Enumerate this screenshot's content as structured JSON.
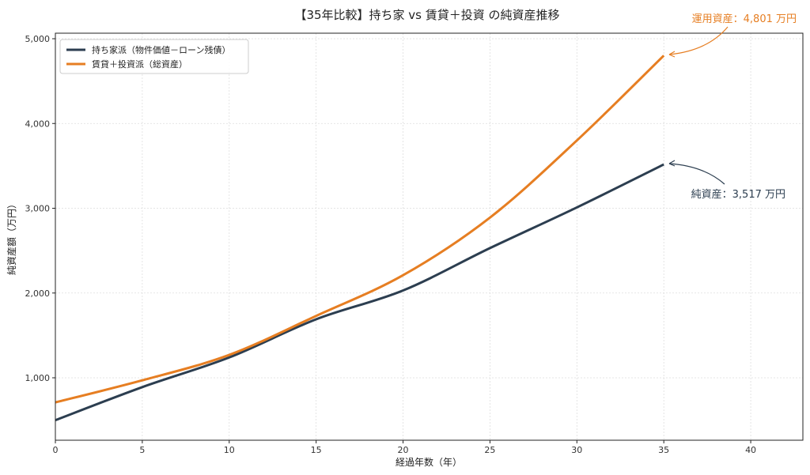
{
  "chart_data": {
    "type": "line",
    "title": "【35年比較】持ち家 vs 賃貸＋投資 の純資産推移",
    "xlabel": "経過年数（年）",
    "ylabel": "純資産額（万円）",
    "xlim": [
      0,
      43
    ],
    "ylim": [
      265,
      5000
    ],
    "xticks": [
      0,
      5,
      10,
      15,
      20,
      25,
      30,
      35,
      40
    ],
    "xtick_labels": [
      "0",
      "5",
      "10",
      "15",
      "20",
      "25",
      "30",
      "35",
      "40"
    ],
    "yticks": [
      1000,
      2000,
      3000,
      4000,
      5000
    ],
    "ytick_labels": [
      "1,000",
      "2,000",
      "3,000",
      "4,000",
      "5,000"
    ],
    "grid": true,
    "legend_position": "upper left",
    "x": [
      0,
      5,
      10,
      15,
      20,
      25,
      30,
      35
    ],
    "series": [
      {
        "name": "持ち家派（物件価値－ローン残債）",
        "color": "#2c3e50",
        "values": [
          500,
          890,
          1240,
          1690,
          2030,
          2530,
          3010,
          3517
        ]
      },
      {
        "name": "賃貸＋投資派（総資産）",
        "color": "#e67e22",
        "values": [
          710,
          970,
          1270,
          1730,
          2210,
          2890,
          3800,
          4801
        ]
      }
    ],
    "annotations": [
      {
        "text": "運用資産：4,801 万円",
        "x": 35,
        "y": 4801,
        "color": "#e67e22"
      },
      {
        "text": "純資産：3,517 万円",
        "x": 35,
        "y": 3517,
        "color": "#2c3e50"
      }
    ]
  }
}
